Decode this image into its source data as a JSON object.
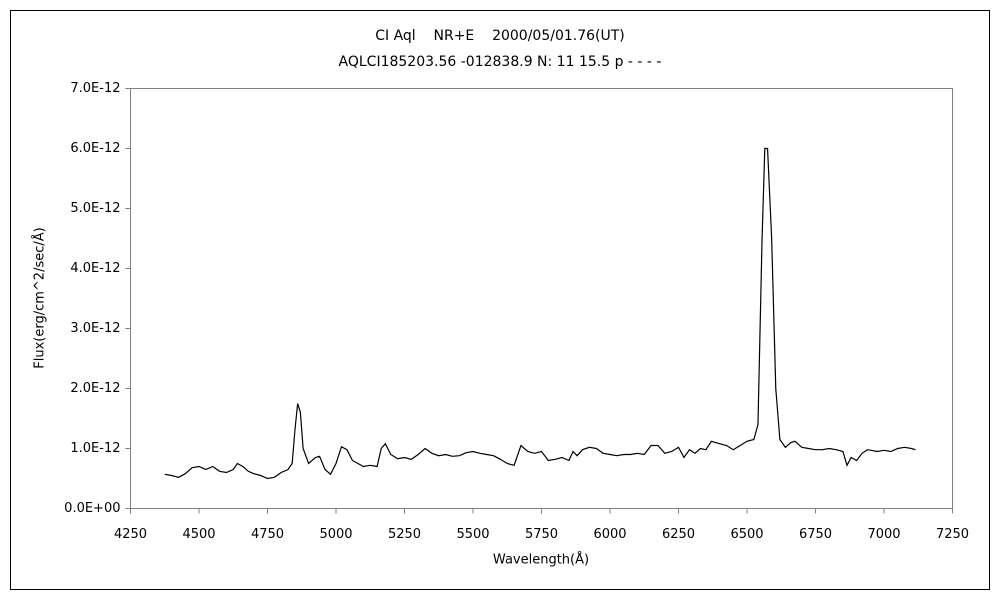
{
  "chart_data": {
    "type": "line",
    "title": "CI Aql    NR+E    2000/05/01.76(UT)",
    "subtitle": "AQLCI185203.56 -012838.9 N: 11 15.5 p - - - -",
    "x_label": "Wavelength(Å)",
    "y_label": "Flux(erg/cm^2/sec/Å)",
    "xlim": [
      4250,
      7250
    ],
    "xticks": [
      4250,
      4500,
      4750,
      5000,
      5250,
      5500,
      5750,
      6000,
      6250,
      6500,
      6750,
      7000,
      7250
    ],
    "ylim": [
      0,
      7e-12
    ],
    "yticks": [
      {
        "value": 0,
        "label": "0.0E+00"
      },
      {
        "value": 1e-12,
        "label": "1.0E-12"
      },
      {
        "value": 2e-12,
        "label": "2.0E-12"
      },
      {
        "value": 3e-12,
        "label": "3.0E-12"
      },
      {
        "value": 4e-12,
        "label": "4.0E-12"
      },
      {
        "value": 5e-12,
        "label": "5.0E-12"
      },
      {
        "value": 6e-12,
        "label": "6.0E-12"
      },
      {
        "value": 7e-12,
        "label": "7.0E-12"
      }
    ],
    "grid": false,
    "color": "#000000",
    "x": [
      4375,
      4400,
      4425,
      4450,
      4475,
      4500,
      4525,
      4550,
      4575,
      4600,
      4625,
      4640,
      4660,
      4680,
      4700,
      4725,
      4750,
      4775,
      4800,
      4825,
      4840,
      4850,
      4860,
      4870,
      4880,
      4900,
      4925,
      4940,
      4960,
      4980,
      5000,
      5020,
      5040,
      5060,
      5080,
      5100,
      5125,
      5150,
      5165,
      5180,
      5200,
      5225,
      5250,
      5275,
      5300,
      5325,
      5350,
      5375,
      5400,
      5425,
      5450,
      5475,
      5500,
      5525,
      5550,
      5575,
      5600,
      5625,
      5650,
      5675,
      5700,
      5725,
      5750,
      5775,
      5800,
      5825,
      5850,
      5865,
      5880,
      5900,
      5925,
      5950,
      5975,
      6000,
      6025,
      6050,
      6075,
      6100,
      6125,
      6150,
      6175,
      6200,
      6225,
      6250,
      6270,
      6290,
      6310,
      6330,
      6350,
      6370,
      6400,
      6425,
      6450,
      6475,
      6500,
      6525,
      6540,
      6555,
      6565,
      6575,
      6590,
      6605,
      6620,
      6640,
      6660,
      6675,
      6700,
      6725,
      6750,
      6775,
      6800,
      6825,
      6850,
      6865,
      6880,
      6900,
      6920,
      6940,
      6975,
      7000,
      7025,
      7050,
      7075,
      7100,
      7115
    ],
    "values": [
      5.7e-13,
      5.5e-13,
      5.2e-13,
      5.8e-13,
      6.8e-13,
      7e-13,
      6.5e-13,
      7e-13,
      6.2e-13,
      6e-13,
      6.5e-13,
      7.5e-13,
      7e-13,
      6.2e-13,
      5.8e-13,
      5.5e-13,
      5e-13,
      5.2e-13,
      6e-13,
      6.5e-13,
      7.5e-13,
      1.3e-12,
      1.75e-12,
      1.6e-12,
      1e-12,
      7.5e-13,
      8.5e-13,
      8.7e-13,
      6.5e-13,
      5.7e-13,
      7.5e-13,
      1.03e-12,
      9.8e-13,
      8e-13,
      7.5e-13,
      7e-13,
      7.2e-13,
      7e-13,
      1e-12,
      1.08e-12,
      9e-13,
      8.3e-13,
      8.5e-13,
      8.2e-13,
      9e-13,
      1e-12,
      9.2e-13,
      8.8e-13,
      9e-13,
      8.7e-13,
      8.8e-13,
      9.3e-13,
      9.5e-13,
      9.2e-13,
      9e-13,
      8.8e-13,
      8.2e-13,
      7.5e-13,
      7.2e-13,
      1.05e-12,
      9.5e-13,
      9.2e-13,
      9.5e-13,
      8e-13,
      8.2e-13,
      8.5e-13,
      8e-13,
      9.5e-13,
      8.8e-13,
      9.8e-13,
      1.02e-12,
      1e-12,
      9.2e-13,
      9e-13,
      8.8e-13,
      9e-13,
      9e-13,
      9.2e-13,
      9e-13,
      1.05e-12,
      1.05e-12,
      9.2e-13,
      9.5e-13,
      1.02e-12,
      8.5e-13,
      9.8e-13,
      9.2e-13,
      1e-12,
      9.8e-13,
      1.12e-12,
      1.08e-12,
      1.05e-12,
      9.8e-13,
      1.05e-12,
      1.12e-12,
      1.15e-12,
      1.4e-12,
      4.5e-12,
      6e-12,
      6e-12,
      4.5e-12,
      2e-12,
      1.15e-12,
      1.02e-12,
      1.1e-12,
      1.12e-12,
      1.02e-12,
      1e-12,
      9.8e-13,
      9.8e-13,
      1e-12,
      9.8e-13,
      9.5e-13,
      7.2e-13,
      8.5e-13,
      8e-13,
      9.2e-13,
      9.8e-13,
      9.5e-13,
      9.7e-13,
      9.5e-13,
      1e-12,
      1.02e-12,
      1e-12,
      9.8e-13
    ]
  }
}
